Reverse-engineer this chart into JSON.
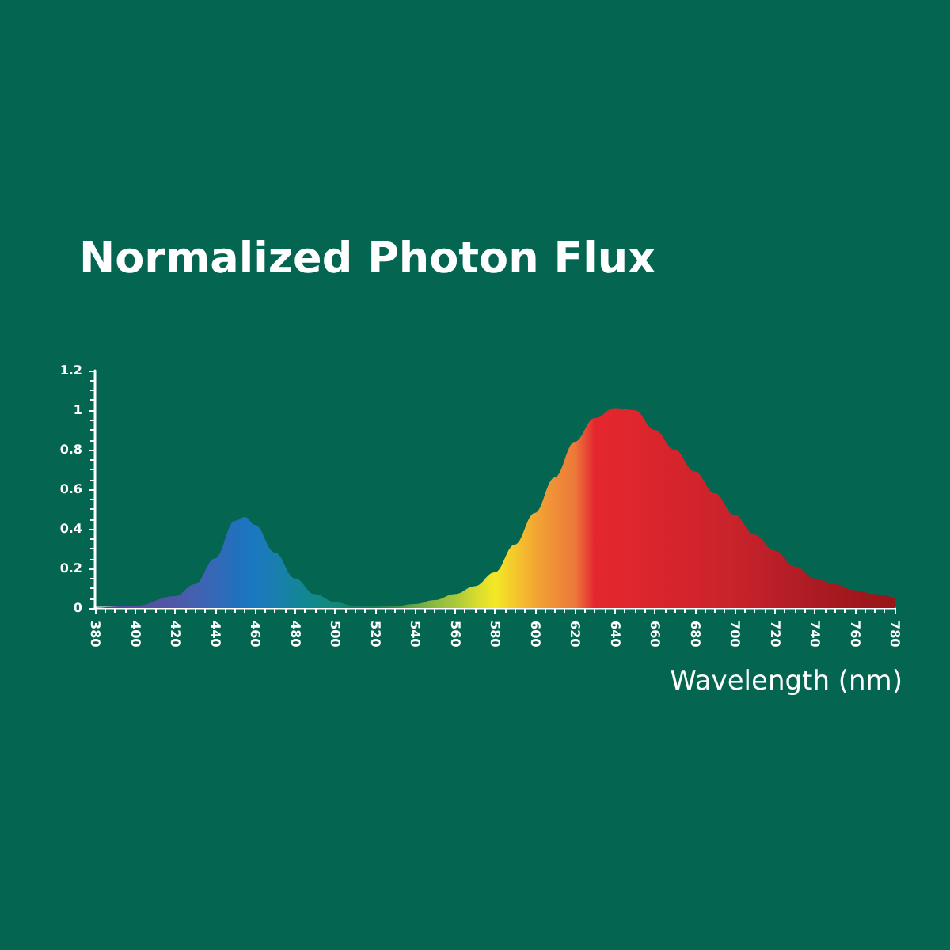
{
  "chart_data": {
    "type": "area",
    "title": "Normalized Photon Flux",
    "xlabel": "Wavelength (nm)",
    "x": [
      380,
      400,
      420,
      430,
      440,
      450,
      455,
      460,
      470,
      480,
      490,
      500,
      510,
      520,
      530,
      540,
      550,
      560,
      570,
      580,
      590,
      600,
      610,
      620,
      630,
      640,
      650,
      660,
      670,
      680,
      690,
      700,
      710,
      720,
      730,
      740,
      750,
      760,
      770,
      780
    ],
    "series": [
      {
        "values": [
          0,
          0.01,
          0.06,
          0.12,
          0.25,
          0.44,
          0.46,
          0.42,
          0.28,
          0.15,
          0.07,
          0.03,
          0.01,
          0.01,
          0.01,
          0.02,
          0.04,
          0.07,
          0.11,
          0.18,
          0.32,
          0.48,
          0.66,
          0.84,
          0.96,
          1.01,
          1.0,
          0.9,
          0.8,
          0.69,
          0.58,
          0.47,
          0.37,
          0.29,
          0.21,
          0.15,
          0.12,
          0.09,
          0.07,
          0.05
        ],
        "colors": [
          "#4a4a9c",
          "#5a4fa0",
          "#4d58a8",
          "#4460b0",
          "#3568b8",
          "#2270bc",
          "#1e74c0",
          "#1a78c0",
          "#1a7eb0",
          "#14849c",
          "#108a8a",
          "#12887a",
          "#168066",
          "#1a7c5a",
          "#3a8a50",
          "#6aa648",
          "#8cba40",
          "#a8c83a",
          "#d4da30",
          "#f4e826",
          "#f4c82c",
          "#f3a733",
          "#ef8e38",
          "#ec7a3a",
          "#e52630",
          "#e3262e",
          "#df262e",
          "#da252d",
          "#d6242c",
          "#d2242c",
          "#cd232b",
          "#c8232b",
          "#c1212a",
          "#ba1f28",
          "#b31d26",
          "#ac1b23",
          "#a6191f",
          "#a0171c",
          "#9c161a",
          "#9a1518"
        ]
      }
    ],
    "xlim": [
      380,
      780
    ],
    "xticks": [
      380,
      400,
      420,
      440,
      460,
      480,
      500,
      520,
      540,
      560,
      580,
      600,
      620,
      640,
      660,
      680,
      700,
      720,
      740,
      760,
      780
    ],
    "ylim": [
      0,
      1.2
    ],
    "yticks": [
      0,
      0.2,
      0.4,
      0.6,
      0.8,
      1,
      1.2
    ],
    "grid": false,
    "marker": "none"
  }
}
